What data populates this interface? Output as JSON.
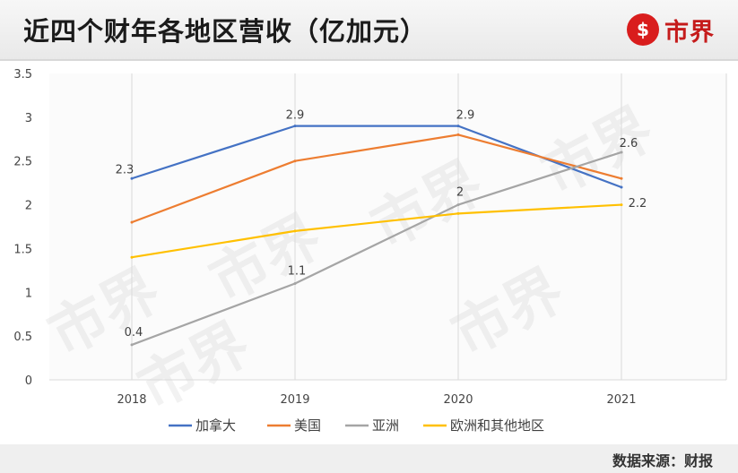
{
  "header": {
    "title": "近四个财年各地区营收（亿加元）",
    "brand_logo_glyph": "$",
    "brand_name": "市界"
  },
  "footer": {
    "source": "数据来源：财报"
  },
  "watermark": {
    "text": "市界"
  },
  "chart_data": {
    "type": "line",
    "title": "近四个财年各地区营收（亿加元）",
    "categories": [
      "2018",
      "2019",
      "2020",
      "2021"
    ],
    "ylim": [
      0,
      3.5
    ],
    "yticks": [
      0,
      0.5,
      1,
      1.5,
      2,
      2.5,
      3,
      3.5
    ],
    "ytick_labels": [
      "0",
      "0.5",
      "1",
      "1.5",
      "2",
      "2.5",
      "3",
      "3.5"
    ],
    "grid": "vertical",
    "legend_position": "bottom",
    "series": [
      {
        "name": "加拿大",
        "values": [
          2.3,
          2.9,
          2.9,
          2.2
        ],
        "color": "#4472c4",
        "labels": [
          "2.3",
          "2.9",
          "2.9",
          "2.2"
        ]
      },
      {
        "name": "美国",
        "values": [
          1.8,
          2.5,
          2.8,
          2.3
        ],
        "color": "#ed7d31",
        "labels": [
          "",
          "",
          "",
          ""
        ]
      },
      {
        "name": "亚洲",
        "values": [
          0.4,
          1.1,
          2.0,
          2.6
        ],
        "color": "#a5a5a5",
        "labels": [
          "0.4",
          "1.1",
          "2",
          "2.6"
        ]
      },
      {
        "name": "欧洲和其他地区",
        "values": [
          1.4,
          1.7,
          1.9,
          2.0
        ],
        "color": "#ffc000",
        "labels": [
          "",
          "",
          "",
          ""
        ]
      }
    ]
  }
}
